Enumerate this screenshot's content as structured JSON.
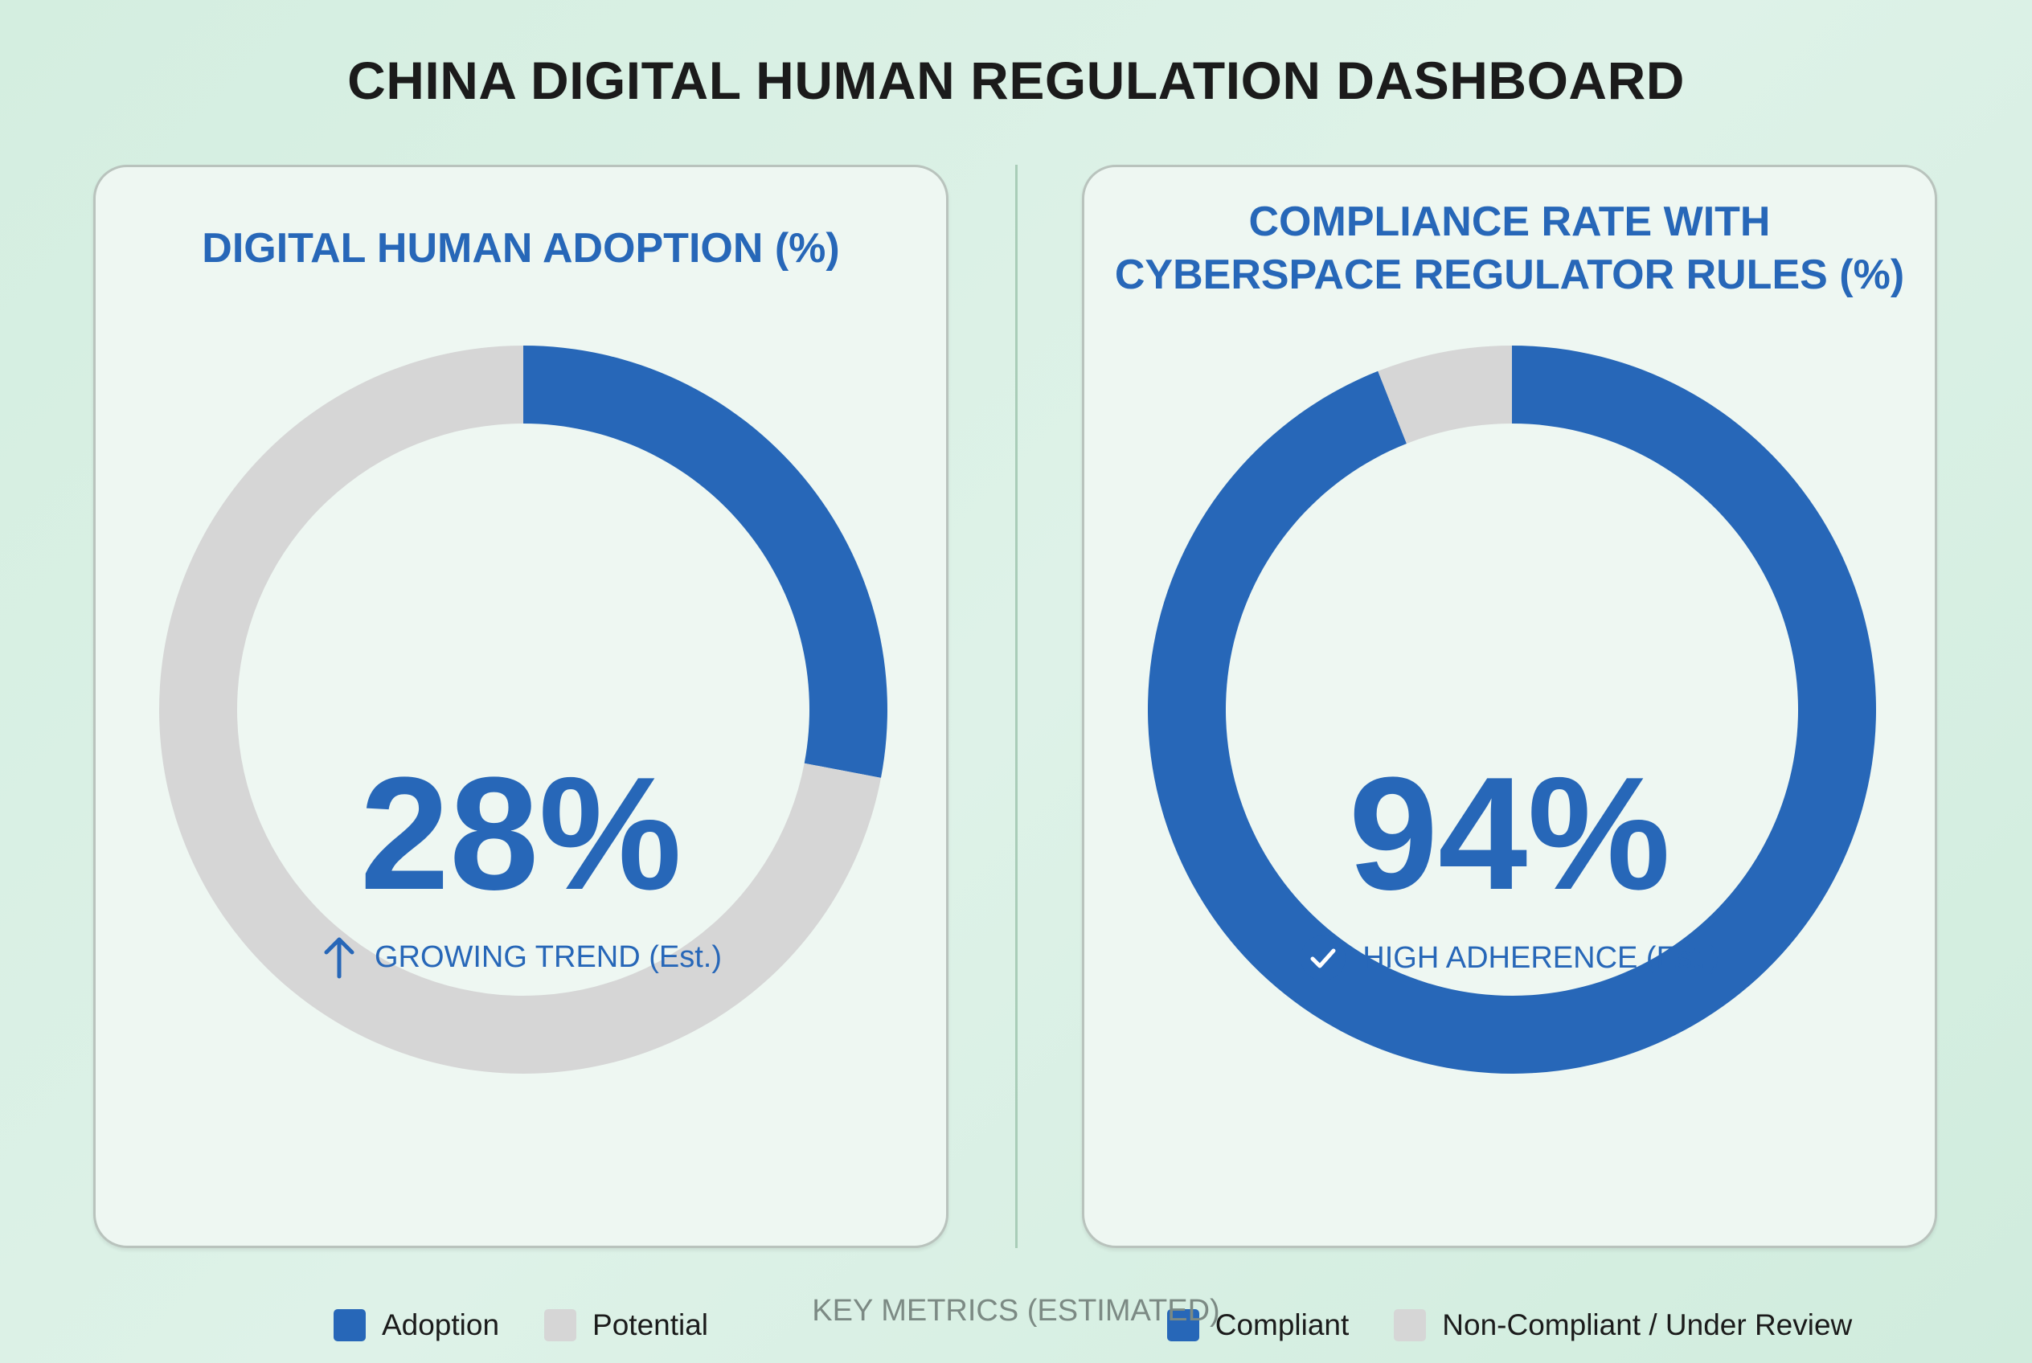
{
  "title": "CHINA DIGITAL HUMAN REGULATION DASHBOARD",
  "footer": "KEY METRICS (ESTIMATED)",
  "colors": {
    "accent": "#2767b8",
    "remainder": "#d6d6d6",
    "background": "#d4eee0",
    "card": "#eef7f2"
  },
  "chart_data": [
    {
      "type": "pie",
      "variant": "donut",
      "title_lines": [
        "DIGITAL HUMAN ADOPTION (%)"
      ],
      "center_value": "28%",
      "center_note": "GROWING TREND (Est.)",
      "center_icon": "arrow-up-icon",
      "slices": [
        {
          "label": "Adoption",
          "value": 28,
          "color": "#2767b8"
        },
        {
          "label": "Potential",
          "value": 72,
          "color": "#d6d6d6"
        }
      ],
      "legend_placement": "bottom"
    },
    {
      "type": "pie",
      "variant": "donut",
      "title_lines": [
        "COMPLIANCE RATE WITH",
        "CYBERSPACE REGULATOR RULES (%)"
      ],
      "center_value": "94%",
      "center_note": "HIGH ADHERENCE (Est.)",
      "center_icon": "check-circle-icon",
      "slices": [
        {
          "label": "Compliant",
          "value": 94,
          "color": "#2767b8"
        },
        {
          "label": "Non-Compliant / Under Review",
          "value": 6,
          "color": "#d6d6d6"
        }
      ],
      "legend_placement": "bottom"
    }
  ]
}
